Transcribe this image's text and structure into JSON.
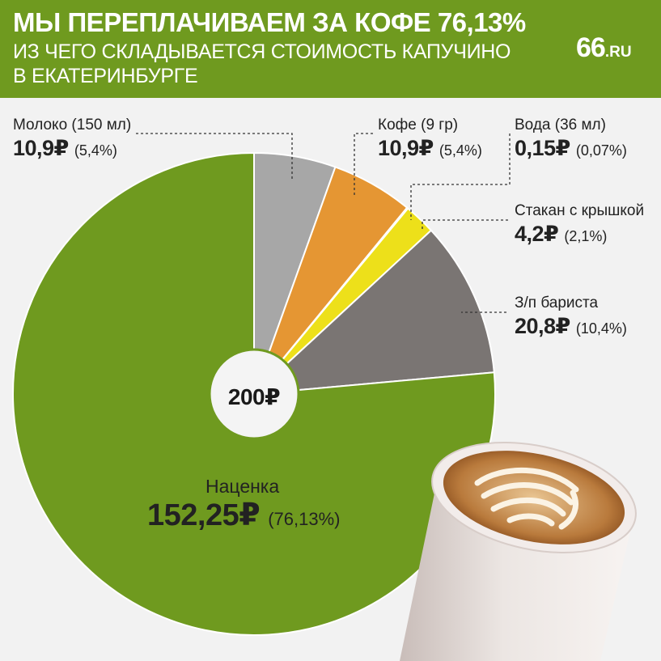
{
  "header": {
    "title": "МЫ ПЕРЕПЛАЧИВАЕМ ЗА КОФЕ 76,13%",
    "subtitle_line1": "ИЗ ЧЕГО СКЛАДЫВАЕТСЯ СТОИМОСТЬ КАПУЧИНО",
    "subtitle_line2": "В ЕКАТЕРИНБУРГЕ",
    "logo_main": "66",
    "logo_suffix": ".RU"
  },
  "colors": {
    "header_bg": "#6f9a1f",
    "milk": "#a7a7a7",
    "coffee": "#e59633",
    "water": "#f4f4f4",
    "cup_lid": "#ede01a",
    "barista": "#7a7573",
    "markup": "#6f9a1f"
  },
  "chart_data": {
    "type": "pie",
    "total": "200₽",
    "slices": [
      {
        "key": "milk",
        "name": "Молоко (150 мл)",
        "value": 10.9,
        "value_label": "10,9₽",
        "percent": "(5,4%)"
      },
      {
        "key": "coffee",
        "name": "Кофе (9 гр)",
        "value": 10.9,
        "value_label": "10,9₽",
        "percent": "(5,4%)"
      },
      {
        "key": "water",
        "name": "Вода (36 мл)",
        "value": 0.15,
        "value_label": "0,15₽",
        "percent": "(0,07%)"
      },
      {
        "key": "cup_lid",
        "name": "Стакан с крышкой",
        "value": 4.2,
        "value_label": "4,2₽",
        "percent": "(2,1%)"
      },
      {
        "key": "barista",
        "name": "З/п бариста",
        "value": 20.8,
        "value_label": "20,8₽",
        "percent": "(10,4%)"
      },
      {
        "key": "markup",
        "name": "Наценка",
        "value": 152.25,
        "value_label": "152,25₽",
        "percent": "(76,13%)"
      }
    ]
  }
}
